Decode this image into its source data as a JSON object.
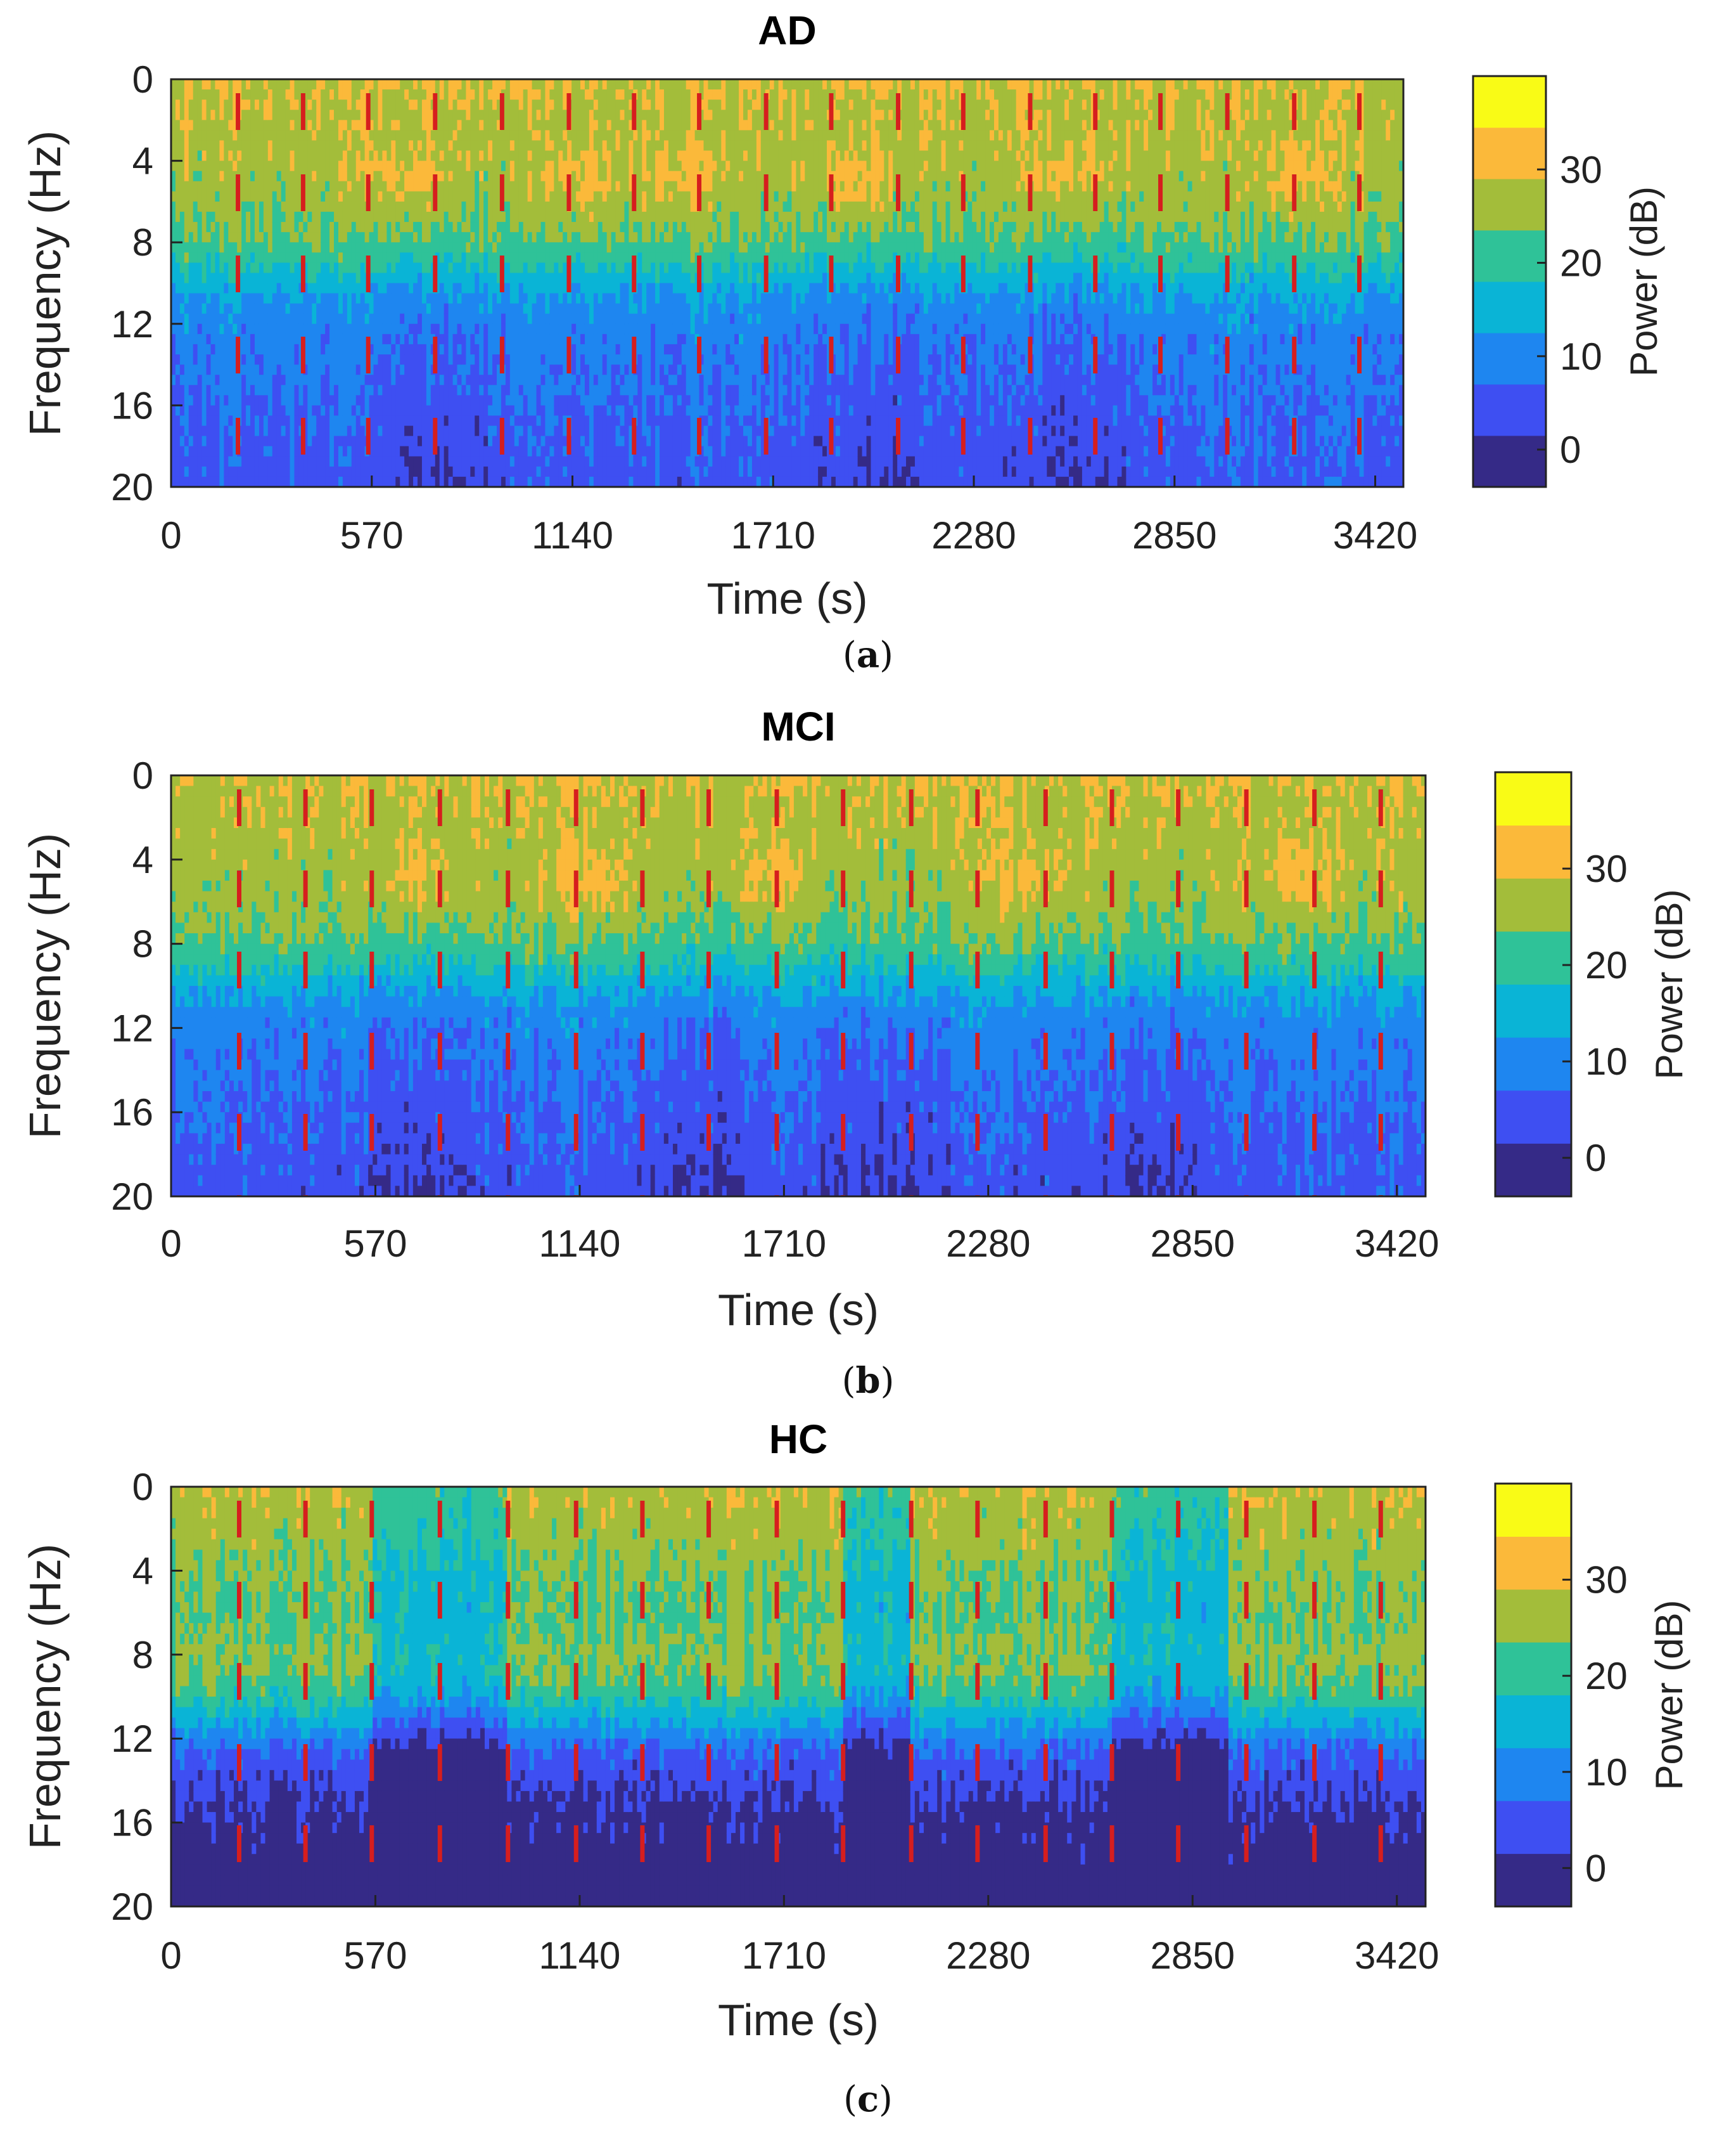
{
  "chart_data": [
    {
      "type": "heatmap",
      "panel": "(a)",
      "panel_letter": "a",
      "title": "AD",
      "xlabel": "Time (s)",
      "ylabel": "Frequency (Hz)",
      "xlim": [
        0,
        3500
      ],
      "ylim": [
        0,
        20
      ],
      "xticks": [
        0,
        570,
        1140,
        1710,
        2280,
        2850,
        3420
      ],
      "yticks": [
        0,
        4,
        8,
        12,
        16,
        20
      ],
      "colorbar": {
        "label": "Power (dB)",
        "min": -4,
        "max": 40,
        "ticks": [
          0,
          10,
          20,
          30
        ],
        "levels": 8
      },
      "event_markers_s": [
        190,
        375,
        560,
        750,
        940,
        1130,
        1315,
        1500,
        1690,
        1875,
        2065,
        2250,
        2440,
        2625,
        2810,
        3000,
        3190,
        3375
      ],
      "segment_boundaries_s": [
        0,
        930,
        1850,
        2950,
        3500
      ],
      "theta_peak_hz": 5,
      "theta_bumps_s": [
        680,
        1160,
        1450,
        1950,
        2550,
        3200
      ],
      "low_power_s": [
        730,
        2000,
        2550
      ]
    },
    {
      "type": "heatmap",
      "panel": "(b)",
      "panel_letter": "b",
      "title": "MCI",
      "xlabel": "Time (s)",
      "ylabel": "Frequency (Hz)",
      "xlim": [
        0,
        3500
      ],
      "ylim": [
        0,
        20
      ],
      "xticks": [
        0,
        570,
        1140,
        1710,
        2280,
        2850,
        3420
      ],
      "yticks": [
        0,
        4,
        8,
        12,
        16,
        20
      ],
      "colorbar": {
        "label": "Power (dB)",
        "min": -4,
        "max": 40,
        "ticks": [
          0,
          10,
          20,
          30
        ],
        "levels": 8
      },
      "event_markers_s": [
        190,
        375,
        560,
        750,
        940,
        1130,
        1315,
        1500,
        1690,
        1875,
        2065,
        2250,
        2440,
        2625,
        2810,
        3000,
        3190,
        3375
      ],
      "segment_boundaries_s": [
        0,
        940,
        1880,
        2850,
        3500
      ],
      "theta_peak_hz": 5,
      "theta_bumps_s": [
        680,
        1160,
        1650,
        2400,
        3150
      ],
      "low_power_s": [
        680,
        1450,
        2000,
        2750
      ]
    },
    {
      "type": "heatmap",
      "panel": "(c)",
      "panel_letter": "c",
      "title": "HC",
      "xlabel": "Time (s)",
      "ylabel": "Frequency (Hz)",
      "xlim": [
        0,
        3500
      ],
      "ylim": [
        0,
        20
      ],
      "xticks": [
        0,
        570,
        1140,
        1710,
        2280,
        2850,
        3420
      ],
      "yticks": [
        0,
        4,
        8,
        12,
        16,
        20
      ],
      "colorbar": {
        "label": "Power (dB)",
        "min": -4,
        "max": 40,
        "ticks": [
          0,
          10,
          20,
          30
        ],
        "levels": 8
      },
      "event_markers_s": [
        190,
        375,
        560,
        750,
        940,
        1130,
        1315,
        1500,
        1690,
        1875,
        2065,
        2250,
        2440,
        2625,
        2810,
        3000,
        3190,
        3375
      ],
      "segment_boundaries_s": [
        0,
        560,
        940,
        1880,
        2065,
        2950,
        3500
      ],
      "alpha_peak_hz": 9,
      "dim_segments_s": [
        [
          560,
          940
        ],
        [
          1880,
          2065
        ],
        [
          2625,
          2950
        ]
      ]
    }
  ]
}
